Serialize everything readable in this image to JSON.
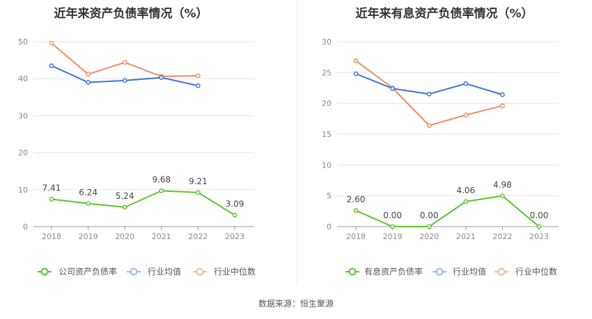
{
  "colors": {
    "company": "#5ac42e",
    "industry_avg": "#3a74d8",
    "industry_median": "#f08b62",
    "legend_avg": "#9bb8ef",
    "legend_median": "#f6b89b"
  },
  "chart_data": [
    {
      "type": "line",
      "title": "近年来资产负债率情况（%）",
      "categories": [
        "2018",
        "2019",
        "2020",
        "2021",
        "2022",
        "2023"
      ],
      "ylim": [
        0,
        50
      ],
      "yticks": [
        "0",
        "10",
        "20",
        "30",
        "40",
        "50"
      ],
      "grid": true,
      "legend_position": "bottom",
      "series": [
        {
          "name": "公司资产负债率",
          "key": "company",
          "values": [
            7.41,
            6.24,
            5.24,
            9.68,
            9.21,
            3.09
          ],
          "labels": [
            "7.41",
            "6.24",
            "5.24",
            "9.68",
            "9.21",
            "3.09"
          ]
        },
        {
          "name": "行业均值",
          "key": "industry_avg",
          "values": [
            43.5,
            39.0,
            39.5,
            40.3,
            38.1,
            null
          ]
        },
        {
          "name": "行业中位数",
          "key": "industry_median",
          "values": [
            49.6,
            41.2,
            44.4,
            40.6,
            40.8,
            null
          ]
        }
      ]
    },
    {
      "type": "line",
      "title": "近年来有息资产负债率情况（%）",
      "categories": [
        "2018",
        "2019",
        "2020",
        "2021",
        "2022",
        "2023"
      ],
      "ylim": [
        0,
        30
      ],
      "yticks": [
        "0",
        "5",
        "10",
        "15",
        "20",
        "25",
        "30"
      ],
      "grid": true,
      "legend_position": "bottom",
      "series": [
        {
          "name": "有息资产负债率",
          "key": "company",
          "values": [
            2.6,
            0.0,
            0.0,
            4.06,
            4.98,
            0.0
          ],
          "labels": [
            "2.60",
            "0.00",
            "0.00",
            "4.06",
            "4.98",
            "0.00"
          ]
        },
        {
          "name": "行业均值",
          "key": "industry_avg",
          "values": [
            24.8,
            22.4,
            21.5,
            23.2,
            21.4,
            null
          ]
        },
        {
          "name": "行业中位数",
          "key": "industry_median",
          "values": [
            26.9,
            22.5,
            16.4,
            18.1,
            19.6,
            null
          ]
        }
      ]
    }
  ],
  "footer": {
    "source": "数据来源：恒生聚源"
  }
}
